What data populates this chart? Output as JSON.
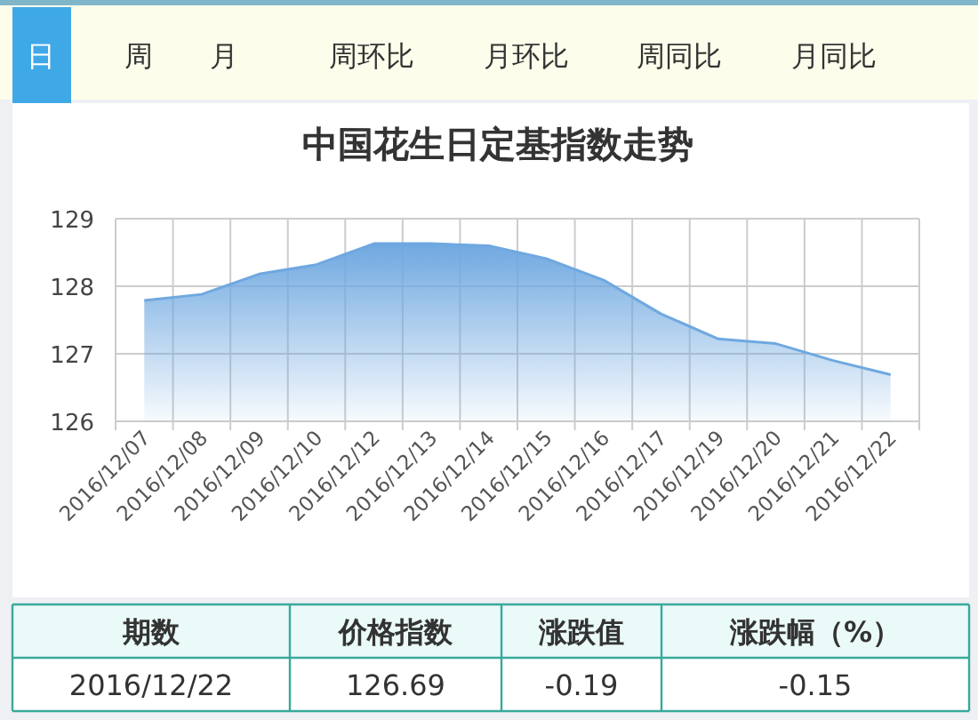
{
  "chart_data": {
    "type": "area",
    "title": "中国花生日定基指数走势",
    "categories": [
      "2016/12/07",
      "2016/12/08",
      "2016/12/09",
      "2016/12/10",
      "2016/12/12",
      "2016/12/13",
      "2016/12/14",
      "2016/12/15",
      "2016/12/16",
      "2016/12/17",
      "2016/12/19",
      "2016/12/20",
      "2016/12/21",
      "2016/12/22"
    ],
    "series": [
      {
        "color": "#6fa8e0",
        "values": [
          127.79,
          127.88,
          128.18,
          128.32,
          128.63,
          128.63,
          128.6,
          128.41,
          128.09,
          127.59,
          127.22,
          127.15,
          126.9,
          126.69
        ]
      }
    ],
    "ylim": [
      126,
      129
    ],
    "yticks": [
      126,
      127,
      128,
      129
    ],
    "grid": true,
    "marker": "none",
    "annotations": [
      "日",
      "周",
      "月",
      "周环比",
      "月环比",
      "周同比",
      "月同比",
      "期数",
      "价格指数",
      "涨跌值",
      "涨跌幅（%）",
      "2016/12/22",
      "126.69",
      "-0.19",
      "-0.15"
    ]
  }
}
